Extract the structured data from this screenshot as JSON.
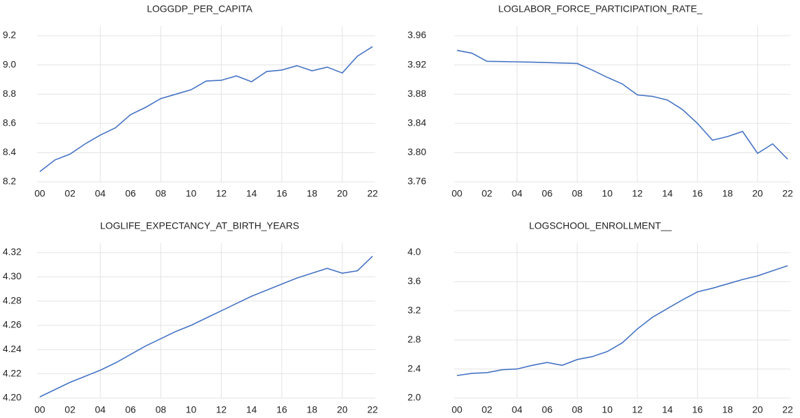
{
  "chart_data": [
    {
      "type": "line",
      "title": "LOGGDP_PER_CAPITA",
      "color": "#4472c4",
      "grid": true,
      "categories": [
        "00",
        null,
        "02",
        null,
        "04",
        null,
        "06",
        null,
        "08",
        null,
        "10",
        null,
        "12",
        null,
        "14",
        null,
        "16",
        null,
        "18",
        null,
        "20",
        null,
        "22"
      ],
      "values": [
        8.27,
        8.35,
        8.39,
        8.46,
        8.52,
        8.57,
        8.66,
        8.71,
        8.77,
        8.8,
        8.83,
        8.89,
        8.895,
        8.925,
        8.885,
        8.955,
        8.965,
        8.995,
        8.96,
        8.985,
        8.945,
        9.06,
        9.125
      ],
      "ylim": [
        8.2,
        9.2
      ],
      "yticks": [
        8.2,
        8.4,
        8.6,
        8.8,
        {
          "value": 9.0,
          "label": "9.0"
        },
        9.2
      ]
    },
    {
      "type": "line",
      "title": "LOGLABOR_FORCE_PARTICIPATION_RATE_",
      "color": "#4472c4",
      "grid": true,
      "categories": [
        "00",
        null,
        "02",
        null,
        "04",
        null,
        "06",
        null,
        "08",
        null,
        "10",
        null,
        "12",
        null,
        "14",
        null,
        "16",
        null,
        "18",
        null,
        "20",
        null,
        "22"
      ],
      "values": [
        3.94,
        3.936,
        3.925,
        3.9246,
        3.9242,
        3.9238,
        3.9232,
        3.9226,
        3.922,
        3.913,
        3.903,
        3.894,
        3.879,
        3.877,
        3.872,
        3.859,
        3.84,
        3.817,
        3.822,
        3.829,
        3.799,
        3.812,
        3.791
      ],
      "ylim": [
        3.76,
        3.96
      ],
      "yticks": [
        3.76,
        {
          "value": 3.8,
          "label": "3.80"
        },
        3.84,
        3.88,
        3.92,
        3.96
      ]
    },
    {
      "type": "line",
      "title": "LOGLIFE_EXPECTANCY_AT_BIRTH_YEARS",
      "color": "#4472c4",
      "grid": true,
      "categories": [
        "00",
        null,
        "02",
        null,
        "04",
        null,
        "06",
        null,
        "08",
        null,
        "10",
        null,
        "12",
        null,
        "14",
        null,
        "16",
        null,
        "18",
        null,
        "20",
        null,
        "22"
      ],
      "values": [
        4.201,
        4.207,
        4.213,
        4.218,
        4.223,
        4.229,
        4.236,
        4.243,
        4.249,
        4.255,
        4.26,
        4.266,
        4.272,
        4.278,
        4.284,
        4.289,
        4.294,
        4.299,
        4.303,
        4.307,
        4.303,
        4.305,
        4.317
      ],
      "ylim": [
        4.2,
        4.32
      ],
      "yticks": [
        {
          "value": 4.2,
          "label": "4.20"
        },
        4.22,
        4.24,
        4.26,
        4.28,
        {
          "value": 4.3,
          "label": "4.30"
        },
        4.32
      ]
    },
    {
      "type": "line",
      "title": "LOGSCHOOL_ENROLLMENT__",
      "color": "#4472c4",
      "grid": true,
      "categories": [
        "00",
        null,
        "02",
        null,
        "04",
        null,
        "06",
        null,
        "08",
        null,
        "10",
        null,
        "12",
        null,
        "14",
        null,
        "16",
        null,
        "18",
        null,
        "20",
        null,
        "22"
      ],
      "values": [
        2.31,
        2.34,
        2.35,
        2.39,
        2.4,
        2.45,
        2.49,
        2.45,
        2.53,
        2.57,
        2.64,
        2.76,
        2.95,
        3.11,
        3.23,
        3.35,
        3.46,
        3.51,
        3.57,
        3.63,
        3.68,
        3.75,
        3.82
      ],
      "ylim": [
        2.0,
        4.0
      ],
      "yticks": [
        {
          "value": 2.0,
          "label": "2.0"
        },
        2.4,
        2.8,
        3.2,
        3.6,
        {
          "value": 4.0,
          "label": "4.0"
        }
      ]
    }
  ]
}
